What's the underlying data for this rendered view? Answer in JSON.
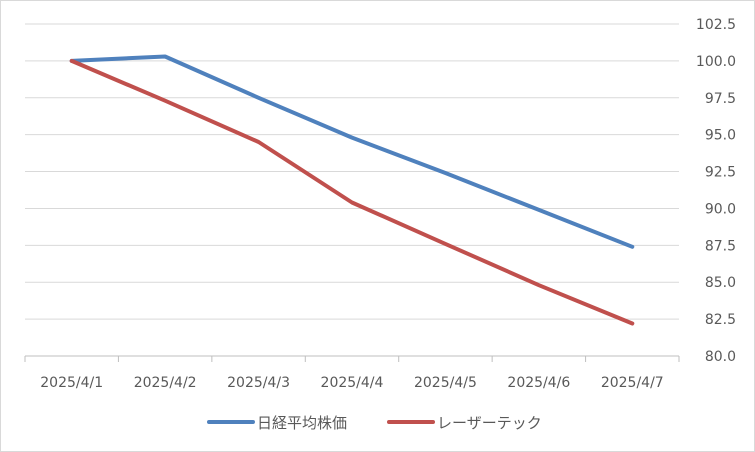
{
  "chart_data": {
    "type": "line",
    "title": "",
    "xlabel": "",
    "ylabel": "",
    "categories": [
      "2025/4/1",
      "2025/4/2",
      "2025/4/3",
      "2025/4/4",
      "2025/4/5",
      "2025/4/6",
      "2025/4/7"
    ],
    "y_ticks": [
      "80.0",
      "82.5",
      "85.0",
      "87.5",
      "90.0",
      "92.5",
      "95.0",
      "97.5",
      "100.0",
      "102.5"
    ],
    "ylim": [
      80,
      102.5
    ],
    "y_axis_side": "right",
    "grid": true,
    "legend_position": "bottom",
    "series": [
      {
        "name": "日経平均株価",
        "color": "#4f81bd",
        "values": [
          100.0,
          100.3,
          97.5,
          94.8,
          92.4,
          89.9,
          87.4
        ]
      },
      {
        "name": "レーザーテック",
        "color": "#c0504d",
        "values": [
          100.0,
          97.3,
          94.5,
          90.4,
          87.6,
          84.8,
          82.2
        ]
      }
    ]
  }
}
